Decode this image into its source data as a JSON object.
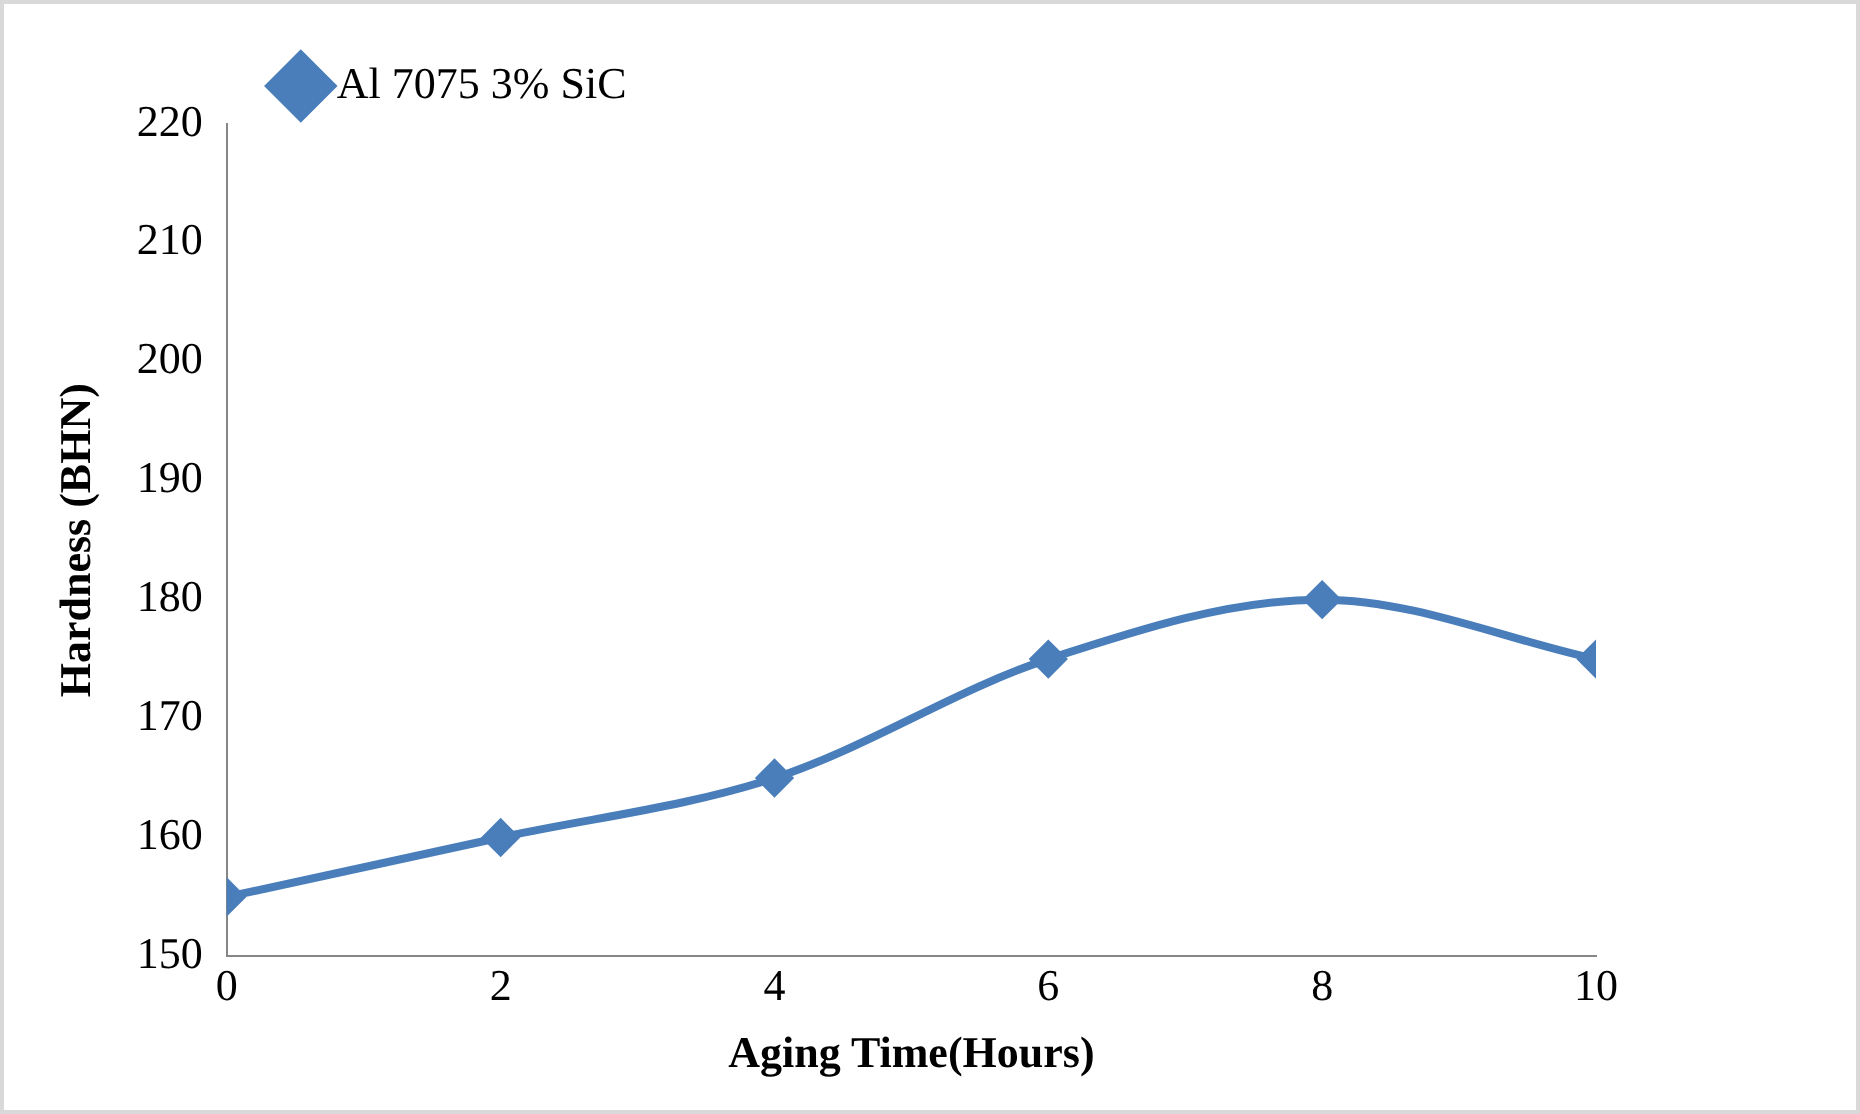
{
  "chart_data": {
    "type": "line",
    "xlabel": "Aging Time(Hours)",
    "ylabel": "Hardness (BHN)",
    "x": [
      0,
      2,
      4,
      6,
      8,
      10
    ],
    "series": [
      {
        "name": "Al 7075 3% SiC",
        "color": "#4a7ebb",
        "values": [
          155,
          160,
          165,
          175,
          180,
          175
        ]
      }
    ],
    "xlim": [
      0,
      10
    ],
    "xticks": [
      0,
      2,
      4,
      6,
      8,
      10
    ],
    "ylim": [
      150,
      220
    ],
    "yticks": [
      150,
      160,
      170,
      180,
      190,
      200,
      210,
      220
    ],
    "grid": false,
    "legend": "top left",
    "marker": "diamond",
    "line_style": "solid"
  }
}
